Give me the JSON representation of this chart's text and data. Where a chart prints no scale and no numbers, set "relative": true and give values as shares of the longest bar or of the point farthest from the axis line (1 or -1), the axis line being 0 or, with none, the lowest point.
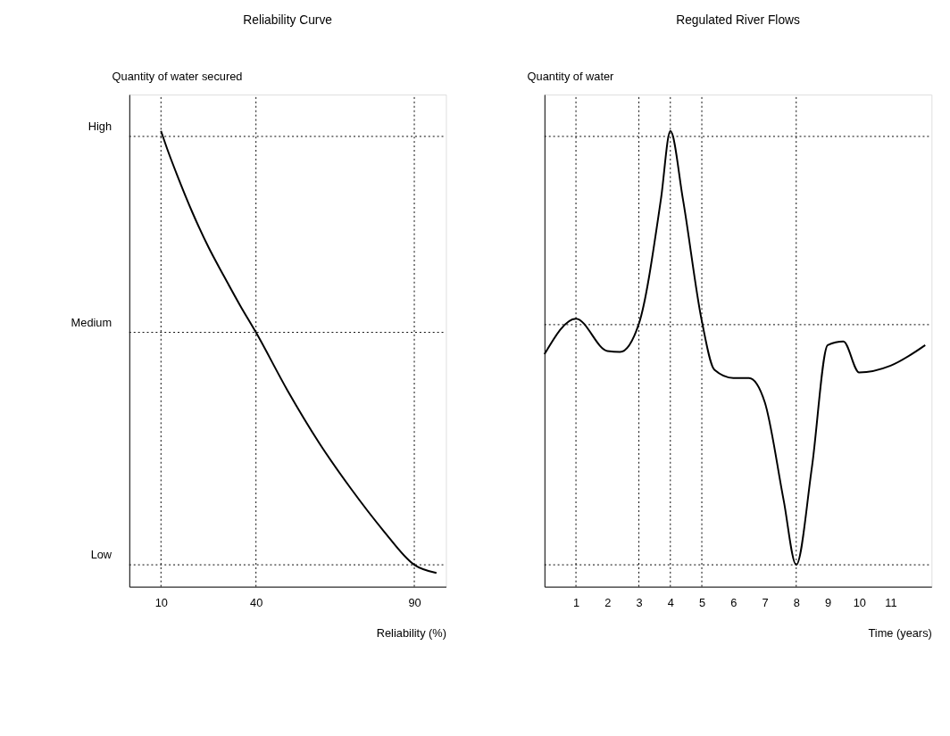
{
  "chart_data": [
    {
      "type": "line",
      "title": "Reliability Curve",
      "xlabel": "Reliability (%)",
      "ylabel": "Quantity of water secured",
      "relative": true,
      "line_style": "solid",
      "xlim": [
        0,
        100
      ],
      "xticks": [
        10,
        40,
        90
      ],
      "series": [
        {
          "color": "#000000",
          "x": [
            10,
            12,
            15,
            20,
            25,
            30,
            35,
            40,
            50,
            60,
            70,
            80,
            90,
            97
          ],
          "values": [
            1.0,
            0.96,
            0.905,
            0.82,
            0.745,
            0.68,
            0.617,
            0.558,
            0.43,
            0.315,
            0.215,
            0.125,
            0.048,
            0.03
          ]
        }
      ],
      "ref_lines": [
        {
          "axis": "y",
          "value": 0.988,
          "label": "High",
          "line_style": "dotted"
        },
        {
          "axis": "y",
          "value": 0.558,
          "label": "Medium",
          "line_style": "dotted"
        },
        {
          "axis": "y",
          "value": 0.048,
          "label": "Low",
          "line_style": "dotted"
        },
        {
          "axis": "x",
          "value": 10,
          "line_style": "dotted"
        },
        {
          "axis": "x",
          "value": 40,
          "line_style": "dotted"
        },
        {
          "axis": "x",
          "value": 90,
          "line_style": "dotted"
        }
      ]
    },
    {
      "type": "line",
      "title": "Regulated River Flows",
      "xlabel": "Time (years)",
      "ylabel": "Quantity of water",
      "relative": true,
      "line_style": "solid",
      "xlim": [
        0,
        12.3
      ],
      "xticks": [
        1,
        2,
        3,
        4,
        5,
        6,
        7,
        8,
        9,
        10,
        11
      ],
      "series": [
        {
          "color": "#000000",
          "x": [
            0,
            1,
            2,
            2.4,
            3,
            3.7,
            4,
            4.4,
            5,
            5.4,
            6,
            6.5,
            7,
            7.6,
            8,
            8.5,
            9,
            9.5,
            10,
            11,
            12.1
          ],
          "values": [
            0.51,
            0.588,
            0.517,
            0.515,
            0.577,
            0.85,
            1.0,
            0.85,
            0.583,
            0.476,
            0.458,
            0.458,
            0.405,
            0.19,
            0.048,
            0.263,
            0.53,
            0.538,
            0.47,
            0.485,
            0.53
          ]
        }
      ],
      "ref_lines": [
        {
          "axis": "y",
          "value": 0.988,
          "line_style": "dotted"
        },
        {
          "axis": "y",
          "value": 0.575,
          "line_style": "dotted"
        },
        {
          "axis": "y",
          "value": 0.048,
          "line_style": "dotted"
        },
        {
          "axis": "x",
          "value": 1,
          "line_style": "dotted"
        },
        {
          "axis": "x",
          "value": 3,
          "line_style": "dotted"
        },
        {
          "axis": "x",
          "value": 4,
          "line_style": "dotted"
        },
        {
          "axis": "x",
          "value": 5,
          "line_style": "dotted"
        },
        {
          "axis": "x",
          "value": 8,
          "line_style": "dotted"
        }
      ]
    }
  ]
}
